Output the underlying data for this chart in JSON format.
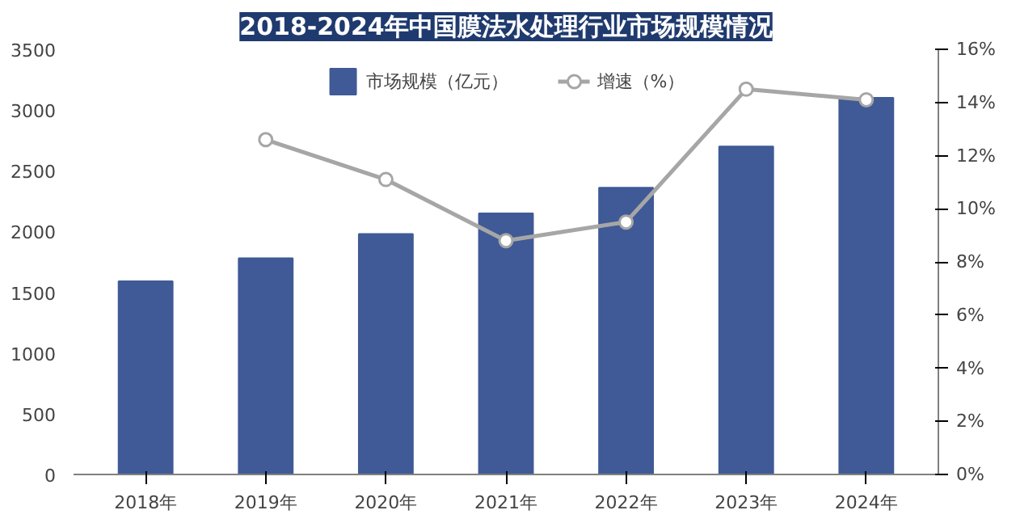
{
  "chart_data": {
    "type": "bar",
    "title": "2018-2024年中国膜法水处理行业市场规模情况",
    "categories": [
      "2018年",
      "2019年",
      "2020年",
      "2021年",
      "2022年",
      "2023年",
      "2024年"
    ],
    "series": [
      {
        "name": "市场规模（亿元）",
        "color": "#3f5a96",
        "values": [
          1590,
          1780,
          1980,
          2150,
          2360,
          2700,
          3100
        ]
      },
      {
        "name": "增速（%）",
        "type": "line",
        "axis": "y2",
        "color": "#a6a6a6",
        "marker": "circle",
        "values": [
          null,
          12.6,
          11.1,
          8.8,
          9.5,
          14.5,
          14.1
        ]
      }
    ],
    "ylim": [
      0,
      3500
    ],
    "yticks": [
      0,
      500,
      1000,
      1500,
      2000,
      2500,
      3000,
      3500
    ],
    "y2lim": [
      0,
      16
    ],
    "y2ticks": [
      {
        "value": 0,
        "label": "0%"
      },
      {
        "value": 2,
        "label": "2%"
      },
      {
        "value": 4,
        "label": "4%"
      },
      {
        "value": 6,
        "label": "6%"
      },
      {
        "value": 8,
        "label": "8%"
      },
      {
        "value": 10,
        "label": "10%"
      },
      {
        "value": 12,
        "label": "12%"
      },
      {
        "value": 14,
        "label": "14%"
      },
      {
        "value": 16,
        "label": "16%"
      }
    ],
    "grid": false,
    "legend": "top"
  }
}
